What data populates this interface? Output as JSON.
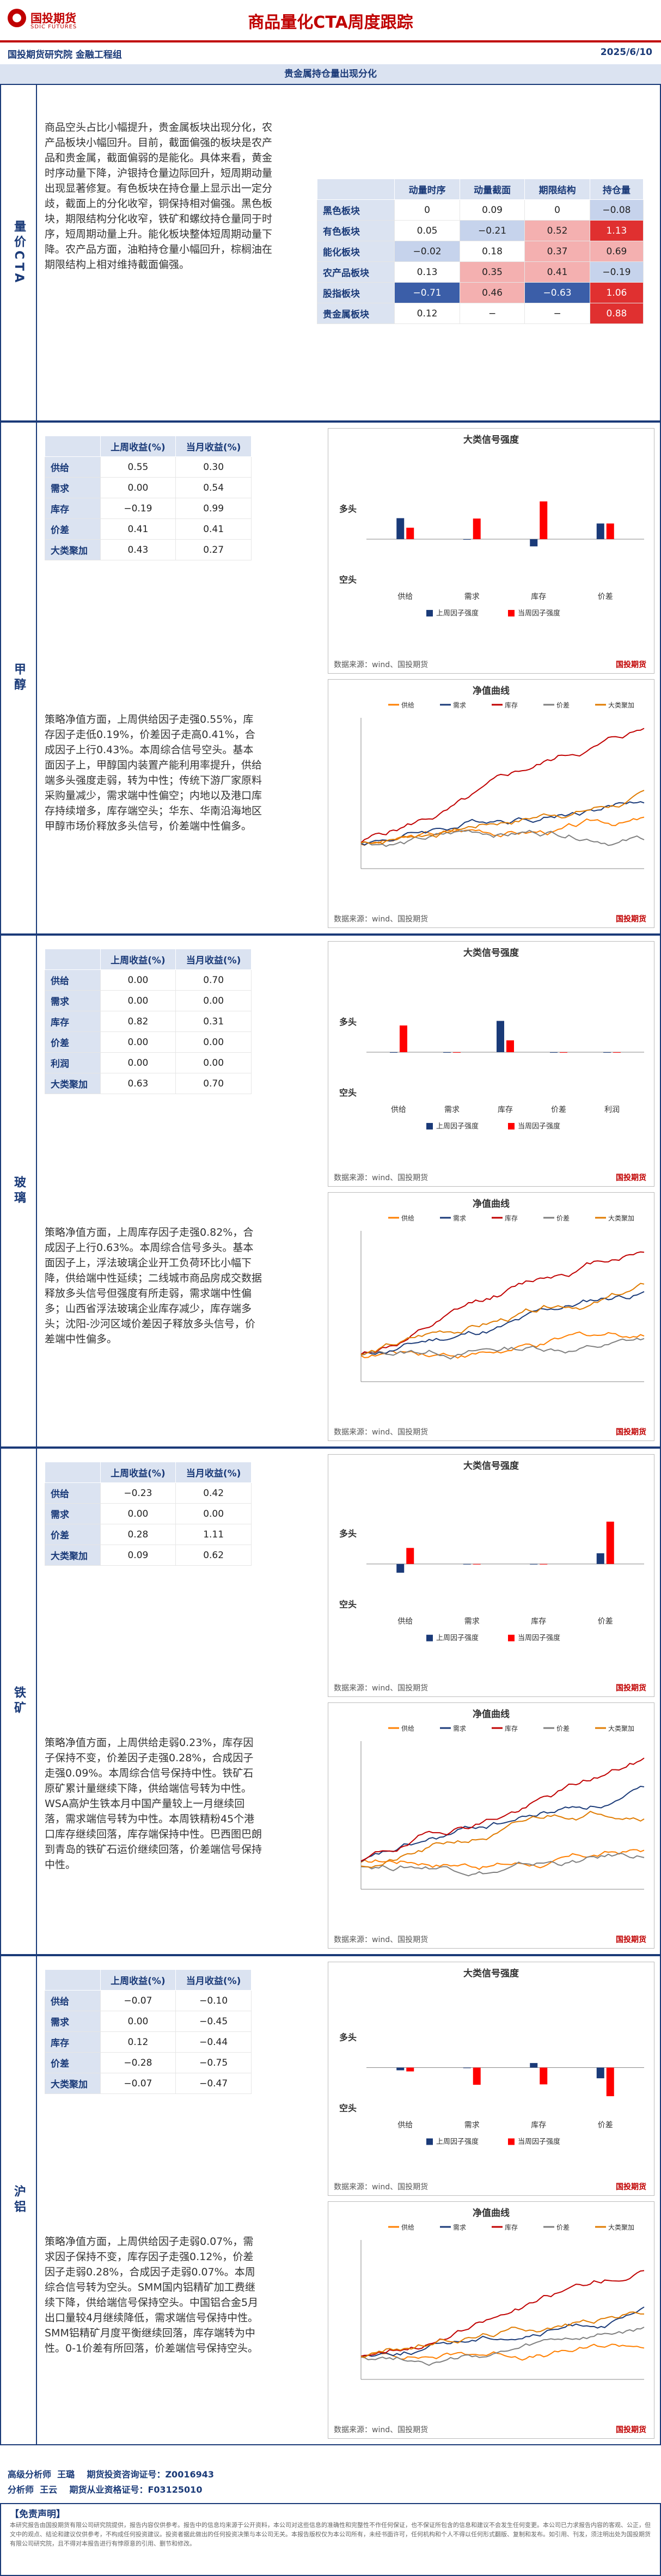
{
  "header": {
    "brand_cn": "国投期货",
    "brand_en": "SDIC FUTURES",
    "title": "商品量化CTA周度跟踪",
    "institute": "国投期货研究院 金融工程组",
    "date": "2025/6/10"
  },
  "banner": "贵金属持仓量出现分化",
  "overview": {
    "label": "量价CTA",
    "text": "商品空头占比小幅提升，贵金属板块出现分化，农产品板块小幅回升。目前，截面偏强的板块是农产品和贵金属，截面偏弱的是能化。具体来看，黄金时序动量下降，沪银持仓量边际回升，短周期动量出现显著修复。有色板块在持仓量上显示出一定分歧，截面上的分化收窄，铜保持相对偏强。黑色板块，期限结构分化收窄，铁矿和螺纹持仓量同于时序，短周期动量上升。能化板块整体短周期动量下降。农产品方面，油粕持仓量小幅回升，棕榈油在期限结构上相对维持截面偏强。",
    "table": {
      "headers": [
        "",
        "动量时序",
        "动量截面",
        "期限结构",
        "持仓量"
      ],
      "rows": [
        {
          "name": "黑色板块",
          "v": [
            "0",
            "0.09",
            "0",
            "−0.08"
          ]
        },
        {
          "name": "有色板块",
          "v": [
            "0.05",
            "−0.21",
            "0.52",
            "1.13"
          ]
        },
        {
          "name": "能化板块",
          "v": [
            "−0.02",
            "0.18",
            "0.37",
            "0.69"
          ]
        },
        {
          "name": "农产品板块",
          "v": [
            "0.13",
            "0.35",
            "0.41",
            "−0.19"
          ]
        },
        {
          "name": "股指板块",
          "v": [
            "−0.71",
            "0.46",
            "−0.63",
            "1.06"
          ]
        },
        {
          "name": "贵金属板块",
          "v": [
            "0.12",
            "−",
            "−",
            "0.88"
          ]
        }
      ]
    }
  },
  "sections": [
    {
      "label": "甲醇",
      "rows": [
        [
          "供给",
          "0.55",
          "0.30"
        ],
        [
          "需求",
          "0.00",
          "0.54"
        ],
        [
          "库存",
          "−0.19",
          "0.99"
        ],
        [
          "价差",
          "0.41",
          "0.41"
        ],
        [
          "大类聚加",
          "0.43",
          "0.27"
        ]
      ],
      "bars": {
        "cats": [
          "供给",
          "需求",
          "库存",
          "价差"
        ],
        "last": [
          0.55,
          0,
          -0.19,
          0.41
        ],
        "cur": [
          0.3,
          0.54,
          0.99,
          0.41
        ]
      },
      "text": "策略净值方面，上周供给因子走强0.55%，库存因子走低0.19%，价差因子走高0.41%，合成因子上行0.43%。本周综合信号空头。基本面因子上，甲醇国内装置产能利用率提升，供给端多头强度走弱，转为中性；传统下游厂家原料采购量减少，需求端中性偏空；内地以及港口库存持续增多，库存端空头；华东、华南沿海地区甲醇市场价释放多头信号，价差端中性偏多。"
    },
    {
      "label": "玻璃",
      "rows": [
        [
          "供给",
          "0.00",
          "0.70"
        ],
        [
          "需求",
          "0.00",
          "0.00"
        ],
        [
          "库存",
          "0.82",
          "0.31"
        ],
        [
          "价差",
          "0.00",
          "0.00"
        ],
        [
          "利润",
          "0.00",
          "0.00"
        ],
        [
          "大类聚加",
          "0.63",
          "0.70"
        ]
      ],
      "bars": {
        "cats": [
          "供给",
          "需求",
          "库存",
          "价差",
          "利润"
        ],
        "last": [
          0,
          0,
          0.82,
          0,
          0
        ],
        "cur": [
          0.7,
          0,
          0.31,
          0,
          0
        ]
      },
      "text": "策略净值方面，上周库存因子走强0.82%，合成因子上行0.63%。本周综合信号多头。基本面因子上，浮法玻璃企业开工负荷环比小幅下降，供给端中性延续；二线城市商品房成交数据释放多头信号但强度有所走弱，需求端中性偏多；山西省浮法玻璃企业库存减少，库存端多头；沈阳-沙河区域价差因子释放多头信号，价差端中性偏多。"
    },
    {
      "label": "铁矿",
      "rows": [
        [
          "供给",
          "−0.23",
          "0.42"
        ],
        [
          "需求",
          "0.00",
          "0.00"
        ],
        [
          "价差",
          "0.28",
          "1.11"
        ],
        [
          "大类聚加",
          "0.09",
          "0.62"
        ]
      ],
      "bars": {
        "cats": [
          "供给",
          "需求",
          "库存",
          "价差"
        ],
        "last": [
          -0.23,
          0,
          0,
          0.28
        ],
        "cur": [
          0.42,
          0,
          0,
          1.11
        ]
      },
      "text": "策略净值方面，上周供给走弱0.23%，库存因子保持不变，价差因子走强0.28%，合成因子走强0.09%。本周综合信号保持中性。铁矿石原矿累计量继续下降，供给端信号转为中性。WSA高炉生铁本月中国产量较上一月继续回落，需求端信号转为中性。本周铁精粉45个港口库存继续回落，库存端保持中性。巴西图巴朗到青岛的铁矿石运价继续回落，价差端信号保持中性。"
    },
    {
      "label": "沪铝",
      "rows": [
        [
          "供给",
          "−0.07",
          "−0.10"
        ],
        [
          "需求",
          "0.00",
          "−0.45"
        ],
        [
          "库存",
          "0.12",
          "−0.44"
        ],
        [
          "价差",
          "−0.28",
          "−0.75"
        ],
        [
          "大类聚加",
          "−0.07",
          "−0.47"
        ]
      ],
      "bars": {
        "cats": [
          "供给",
          "需求",
          "库存",
          "价差"
        ],
        "last": [
          -0.07,
          0,
          0.12,
          -0.28
        ],
        "cur": [
          -0.1,
          -0.45,
          -0.44,
          -0.75
        ]
      },
      "text": "策略净值方面，上周供给因子走弱0.07%，需求因子保持不变，库存因子走强0.12%，价差因子走弱0.28%，合成因子走弱0.07%。本周综合信号转为空头。SMM国内铝精矿加工费继续下降，供给端信号保持空头。中国铝合金5月出口量较4月继续降低，需求端信号保持中性。SMM铝精矿月度平衡继续回落，库存端转为中性。0-1价差有所回落，价差端信号保持空头。"
    }
  ],
  "labels": {
    "col_last": "上周收益(%)",
    "col_cur": "当月收益(%)",
    "bars_title": "大类信号强度",
    "long": "多头",
    "short": "空头",
    "leg_last": "上周因子强度",
    "leg_cur": "当周因子强度",
    "nav_title": "净值曲线",
    "source": "数据来源：wind、国投期货",
    "wm": "国投期货"
  },
  "series_names": [
    "供给",
    "需求",
    "库存",
    "价差",
    "大类聚加"
  ],
  "footer": {
    "a1": "高级分析师",
    "n1": "王璐",
    "c1": "期货投资咨询证号：Z0016943",
    "a2": "分析师",
    "n2": "王云",
    "c2": "期货从业资格证号：F03125010"
  },
  "disclaimer": {
    "h": "【免责声明】",
    "b": "本研究报告由国投期货有限公司研究院提供，报告内容仅供参考。报告中的信息均来源于公开资料，本公司对这些信息的准确性和完整性不作任何保证，也不保证所包含的信息和建议不会发生任何变更。本公司已力求报告内容的客观、公正，但文中的观点、结论和建议仅供参考，不构成任何投资建议。投资者据此做出的任何投资决策与本公司无关。本报告版权仅为本公司所有，未经书面许可，任何机构和个人不得以任何形式翻版、复制和发布。如引用、刊发，须注明出处为国投期货有限公司研究院，且不得对本报告进行有悖原意的引用、删节和修改。"
  },
  "colors": {
    "brand": "#c00000",
    "navy": "#1a3a78",
    "last": "#1a3a78",
    "cur": "#ff0000"
  }
}
